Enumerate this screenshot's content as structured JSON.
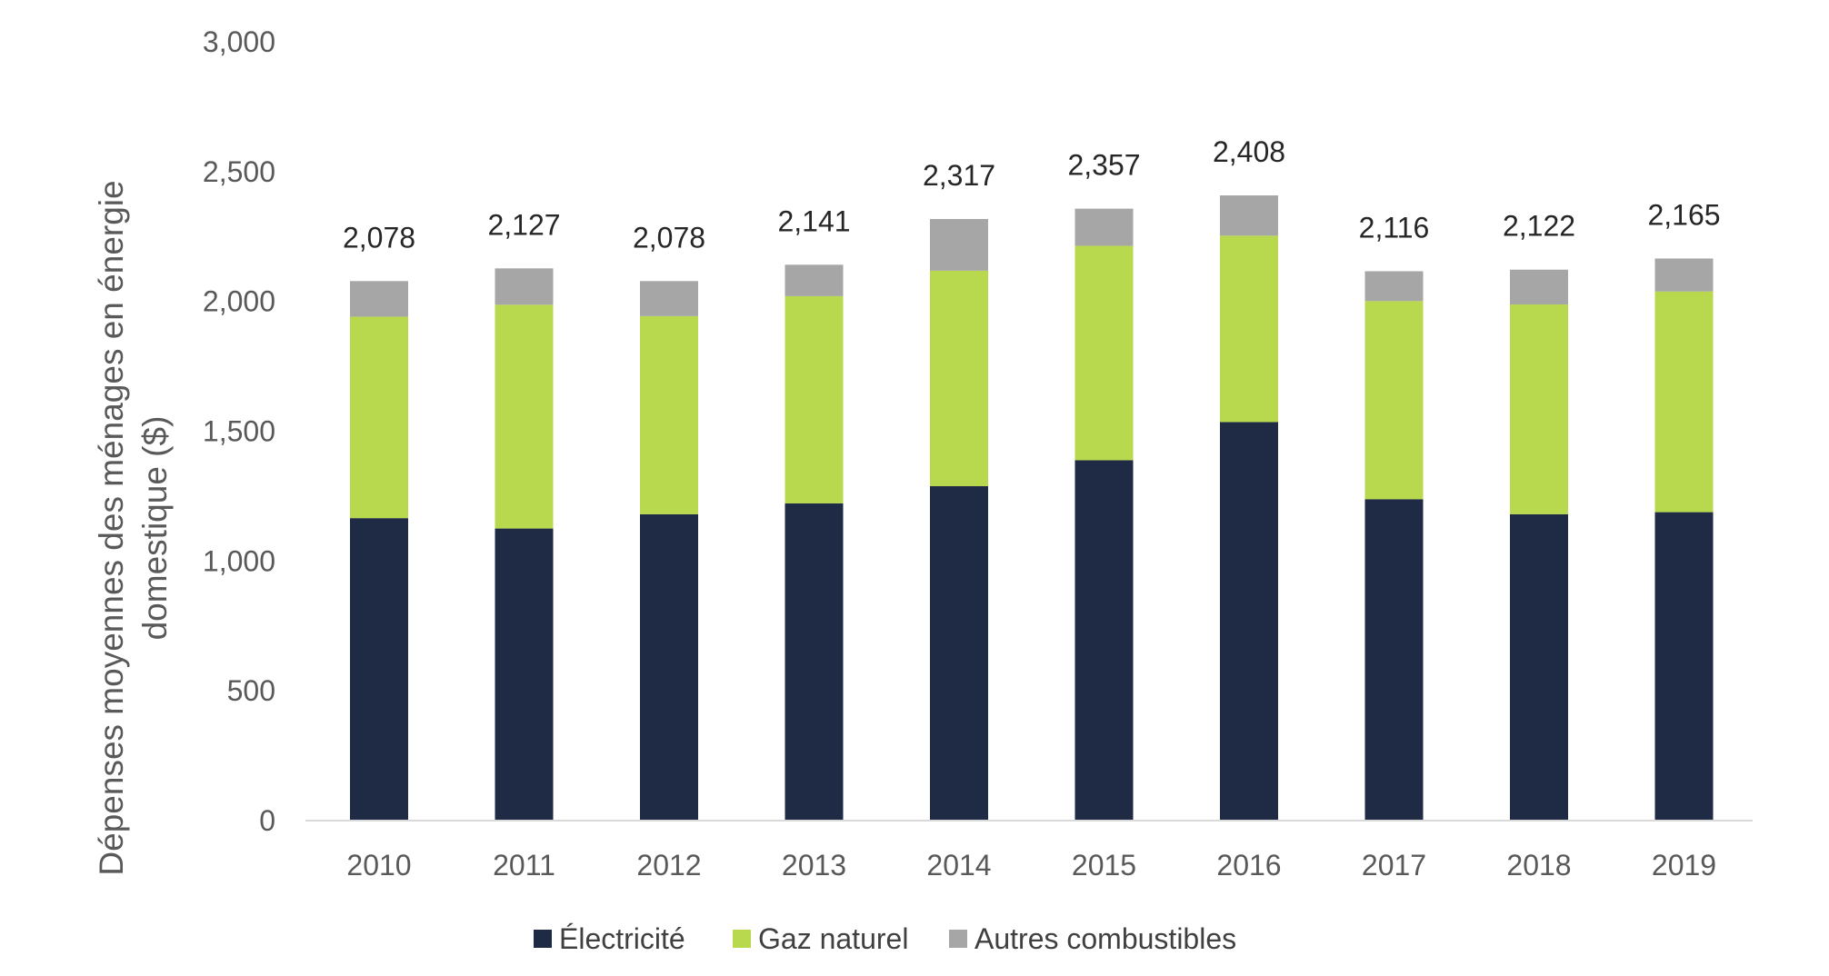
{
  "chart_data": {
    "type": "bar",
    "stacked": true,
    "title": "",
    "xlabel": "",
    "ylabel": [
      "Dépenses moyennes des ménages en énergie",
      "domestique ($)"
    ],
    "ylim": [
      0,
      3000
    ],
    "yticks": [
      0,
      500,
      1000,
      1500,
      2000,
      2500,
      3000
    ],
    "ytick_labels": [
      "0",
      "500",
      "1,000",
      "1,500",
      "2,000",
      "2,500",
      "3,000"
    ],
    "categories": [
      "2010",
      "2011",
      "2012",
      "2013",
      "2014",
      "2015",
      "2016",
      "2017",
      "2018",
      "2019"
    ],
    "series": [
      {
        "name": "Électricité",
        "color": "#1f2a44",
        "values": [
          1165,
          1125,
          1180,
          1222,
          1288,
          1388,
          1535,
          1238,
          1180,
          1188
        ]
      },
      {
        "name": "Gaz naturel",
        "color": "#b8d84e",
        "values": [
          776,
          862,
          763,
          798,
          830,
          826,
          718,
          763,
          808,
          850
        ]
      },
      {
        "name": "Autres combustibles",
        "color": "#a6a6a6",
        "values": [
          137,
          140,
          135,
          121,
          199,
          143,
          155,
          115,
          134,
          127
        ]
      }
    ],
    "totals": [
      "2,078",
      "2,127",
      "2,078",
      "2,141",
      "2,317",
      "2,357",
      "2,408",
      "2,116",
      "2,122",
      "2,165"
    ],
    "grid": false,
    "legend_position": "bottom"
  }
}
